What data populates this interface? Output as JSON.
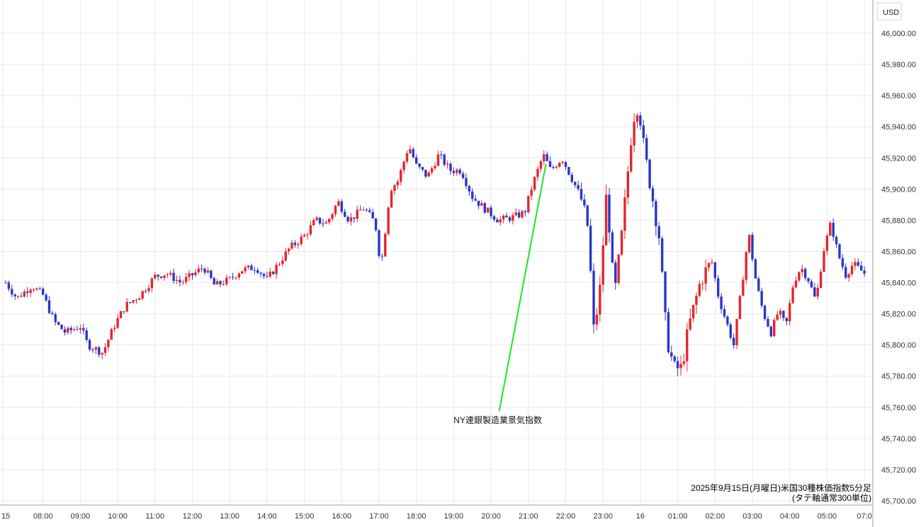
{
  "chart_data": {
    "type": "candlestick",
    "title": "2025年9月15日(月曜日)米国30種株価指数5分足",
    "subtitle": "(タテ軸通常300単位)",
    "currency_label": "USD",
    "ylim": [
      45700,
      46010
    ],
    "y_ticks": [
      46000,
      45980,
      45960,
      45940,
      45920,
      45900,
      45880,
      45860,
      45840,
      45820,
      45800,
      45780,
      45760,
      45740,
      45720,
      45700
    ],
    "y_tick_labels": [
      "46,000.00",
      "45,980.00",
      "45,960.00",
      "45,940.00",
      "45,920.00",
      "45,900.00",
      "45,880.00",
      "45,860.00",
      "45,840.00",
      "45,820.00",
      "45,800.00",
      "45,780.00",
      "45,760.00",
      "45,740.00",
      "45,720.00",
      "45,700.00"
    ],
    "x_tick_labels": [
      "15",
      "08:00",
      "09:00",
      "10:00",
      "11:00",
      "12:00",
      "13:00",
      "14:00",
      "15:00",
      "16:00",
      "17:00",
      "18:00",
      "19:00",
      "20:00",
      "21:00",
      "22:00",
      "23:00",
      "16",
      "01:00",
      "02:00",
      "03:00",
      "04:00",
      "05:00",
      "07:0"
    ],
    "x_tick_positions_hours": [
      -0.08,
      1,
      2,
      3,
      4,
      5,
      6,
      7,
      8,
      9,
      10,
      11,
      12,
      13,
      14,
      15,
      16,
      17,
      18,
      19,
      20,
      21,
      22,
      23
    ],
    "annotation": {
      "text": "NY連銀製造業景気指数",
      "x_hour": 14.47,
      "y_value": 45916,
      "label_x_hour": 13.2,
      "label_y_value": 45758
    },
    "up_color": "#e5262e",
    "down_color": "#2b36c8",
    "grid": true,
    "close_path": [
      [
        0,
        45840
      ],
      [
        0.3,
        45830
      ],
      [
        0.7,
        45838
      ],
      [
        1.0,
        45832
      ],
      [
        1.3,
        45815
      ],
      [
        1.6,
        45808
      ],
      [
        2.0,
        45812
      ],
      [
        2.2,
        45800
      ],
      [
        2.6,
        45795
      ],
      [
        2.9,
        45812
      ],
      [
        3.2,
        45825
      ],
      [
        3.6,
        45832
      ],
      [
        4.0,
        45844
      ],
      [
        4.3,
        45846
      ],
      [
        4.7,
        45840
      ],
      [
        5.0,
        45845
      ],
      [
        5.3,
        45850
      ],
      [
        5.6,
        45838
      ],
      [
        6.0,
        45842
      ],
      [
        6.3,
        45848
      ],
      [
        6.7,
        45850
      ],
      [
        7.0,
        45842
      ],
      [
        7.3,
        45852
      ],
      [
        7.6,
        45862
      ],
      [
        8.0,
        45870
      ],
      [
        8.3,
        45880
      ],
      [
        8.6,
        45878
      ],
      [
        8.9,
        45892
      ],
      [
        9.2,
        45880
      ],
      [
        9.6,
        45888
      ],
      [
        9.9,
        45878
      ],
      [
        10.05,
        45850
      ],
      [
        10.3,
        45900
      ],
      [
        10.5,
        45905
      ],
      [
        10.8,
        45928
      ],
      [
        11.0,
        45915
      ],
      [
        11.3,
        45908
      ],
      [
        11.6,
        45922
      ],
      [
        11.9,
        45912
      ],
      [
        12.2,
        45912
      ],
      [
        12.5,
        45895
      ],
      [
        12.8,
        45888
      ],
      [
        13.2,
        45880
      ],
      [
        13.6,
        45882
      ],
      [
        13.9,
        45885
      ],
      [
        14.1,
        45902
      ],
      [
        14.4,
        45922
      ],
      [
        14.6,
        45912
      ],
      [
        14.9,
        45920
      ],
      [
        15.2,
        45905
      ],
      [
        15.4,
        45895
      ],
      [
        15.6,
        45875
      ],
      [
        15.75,
        45810
      ],
      [
        15.9,
        45830
      ],
      [
        16.1,
        45900
      ],
      [
        16.3,
        45830
      ],
      [
        16.5,
        45870
      ],
      [
        16.8,
        45945
      ],
      [
        16.95,
        45955
      ],
      [
        17.1,
        45925
      ],
      [
        17.3,
        45898
      ],
      [
        17.5,
        45870
      ],
      [
        17.7,
        45805
      ],
      [
        17.9,
        45785
      ],
      [
        18.1,
        45785
      ],
      [
        18.3,
        45812
      ],
      [
        18.6,
        45840
      ],
      [
        18.9,
        45855
      ],
      [
        19.1,
        45830
      ],
      [
        19.3,
        45815
      ],
      [
        19.5,
        45800
      ],
      [
        19.7,
        45835
      ],
      [
        19.9,
        45872
      ],
      [
        20.1,
        45840
      ],
      [
        20.3,
        45820
      ],
      [
        20.5,
        45808
      ],
      [
        20.7,
        45822
      ],
      [
        20.9,
        45812
      ],
      [
        21.1,
        45840
      ],
      [
        21.3,
        45850
      ],
      [
        21.5,
        45842
      ],
      [
        21.7,
        45828
      ],
      [
        21.9,
        45860
      ],
      [
        22.1,
        45878
      ],
      [
        22.3,
        45858
      ],
      [
        22.5,
        45845
      ],
      [
        22.7,
        45852
      ],
      [
        22.9,
        45848
      ],
      [
        23.05,
        45845
      ]
    ],
    "spike_up_hours": [
      17.05,
      15.98
    ],
    "spike_down_hours": [
      15.78,
      18.2
    ]
  }
}
